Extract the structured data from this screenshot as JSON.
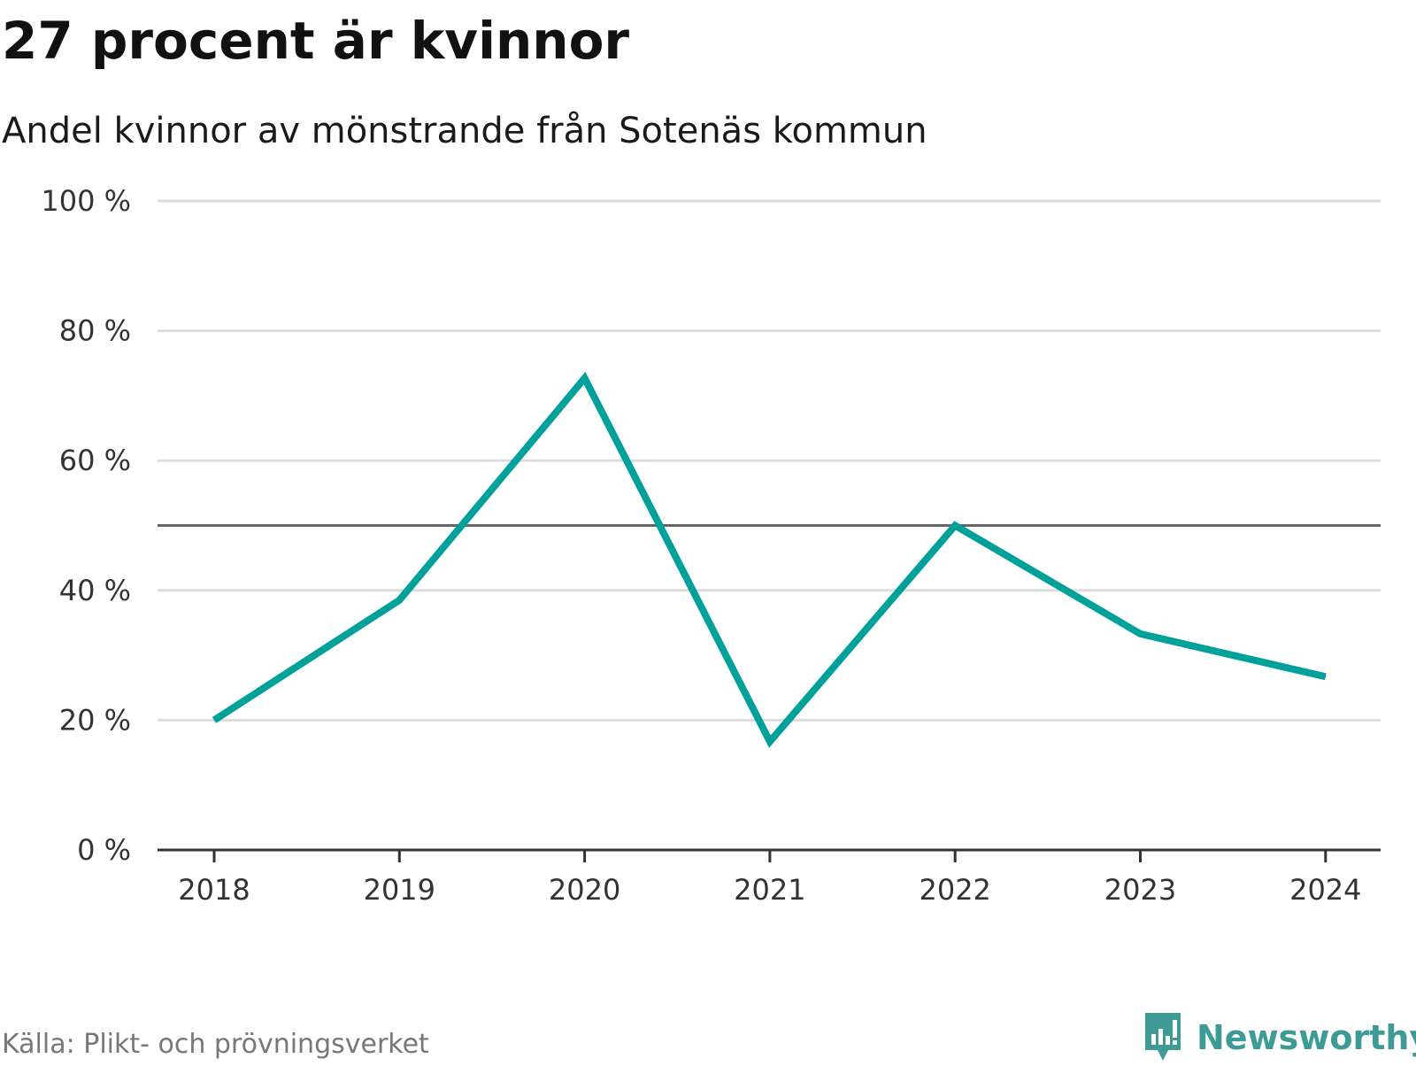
{
  "title": "27 procent är kvinnor",
  "subtitle": "Andel kvinnor av mönstrande från Sotenäs kommun",
  "source": "Källa: Plikt- och prövningsverket",
  "brand": "Newsworthy",
  "colors": {
    "line": "#00a19a",
    "grid": "#dddddd",
    "reference": "#666666",
    "axis": "#333333",
    "brand": "#3d9a95"
  },
  "chart_data": {
    "type": "line",
    "title": "27 procent är kvinnor",
    "subtitle": "Andel kvinnor av mönstrande från Sotenäs kommun",
    "xlabel": "",
    "ylabel": "",
    "categories": [
      "2018",
      "2019",
      "2020",
      "2021",
      "2022",
      "2023",
      "2024"
    ],
    "series": [
      {
        "name": "Andel kvinnor",
        "values": [
          20,
          38.5,
          72.7,
          16.7,
          50,
          33.3,
          26.7
        ]
      }
    ],
    "ylim": [
      0,
      100
    ],
    "yticks": [
      0,
      20,
      40,
      60,
      80,
      100
    ],
    "ytick_labels": [
      "0 %",
      "20 %",
      "40 %",
      "60 %",
      "80 %",
      "100 %"
    ],
    "reference_line": 50,
    "grid": true,
    "legend": "none"
  }
}
